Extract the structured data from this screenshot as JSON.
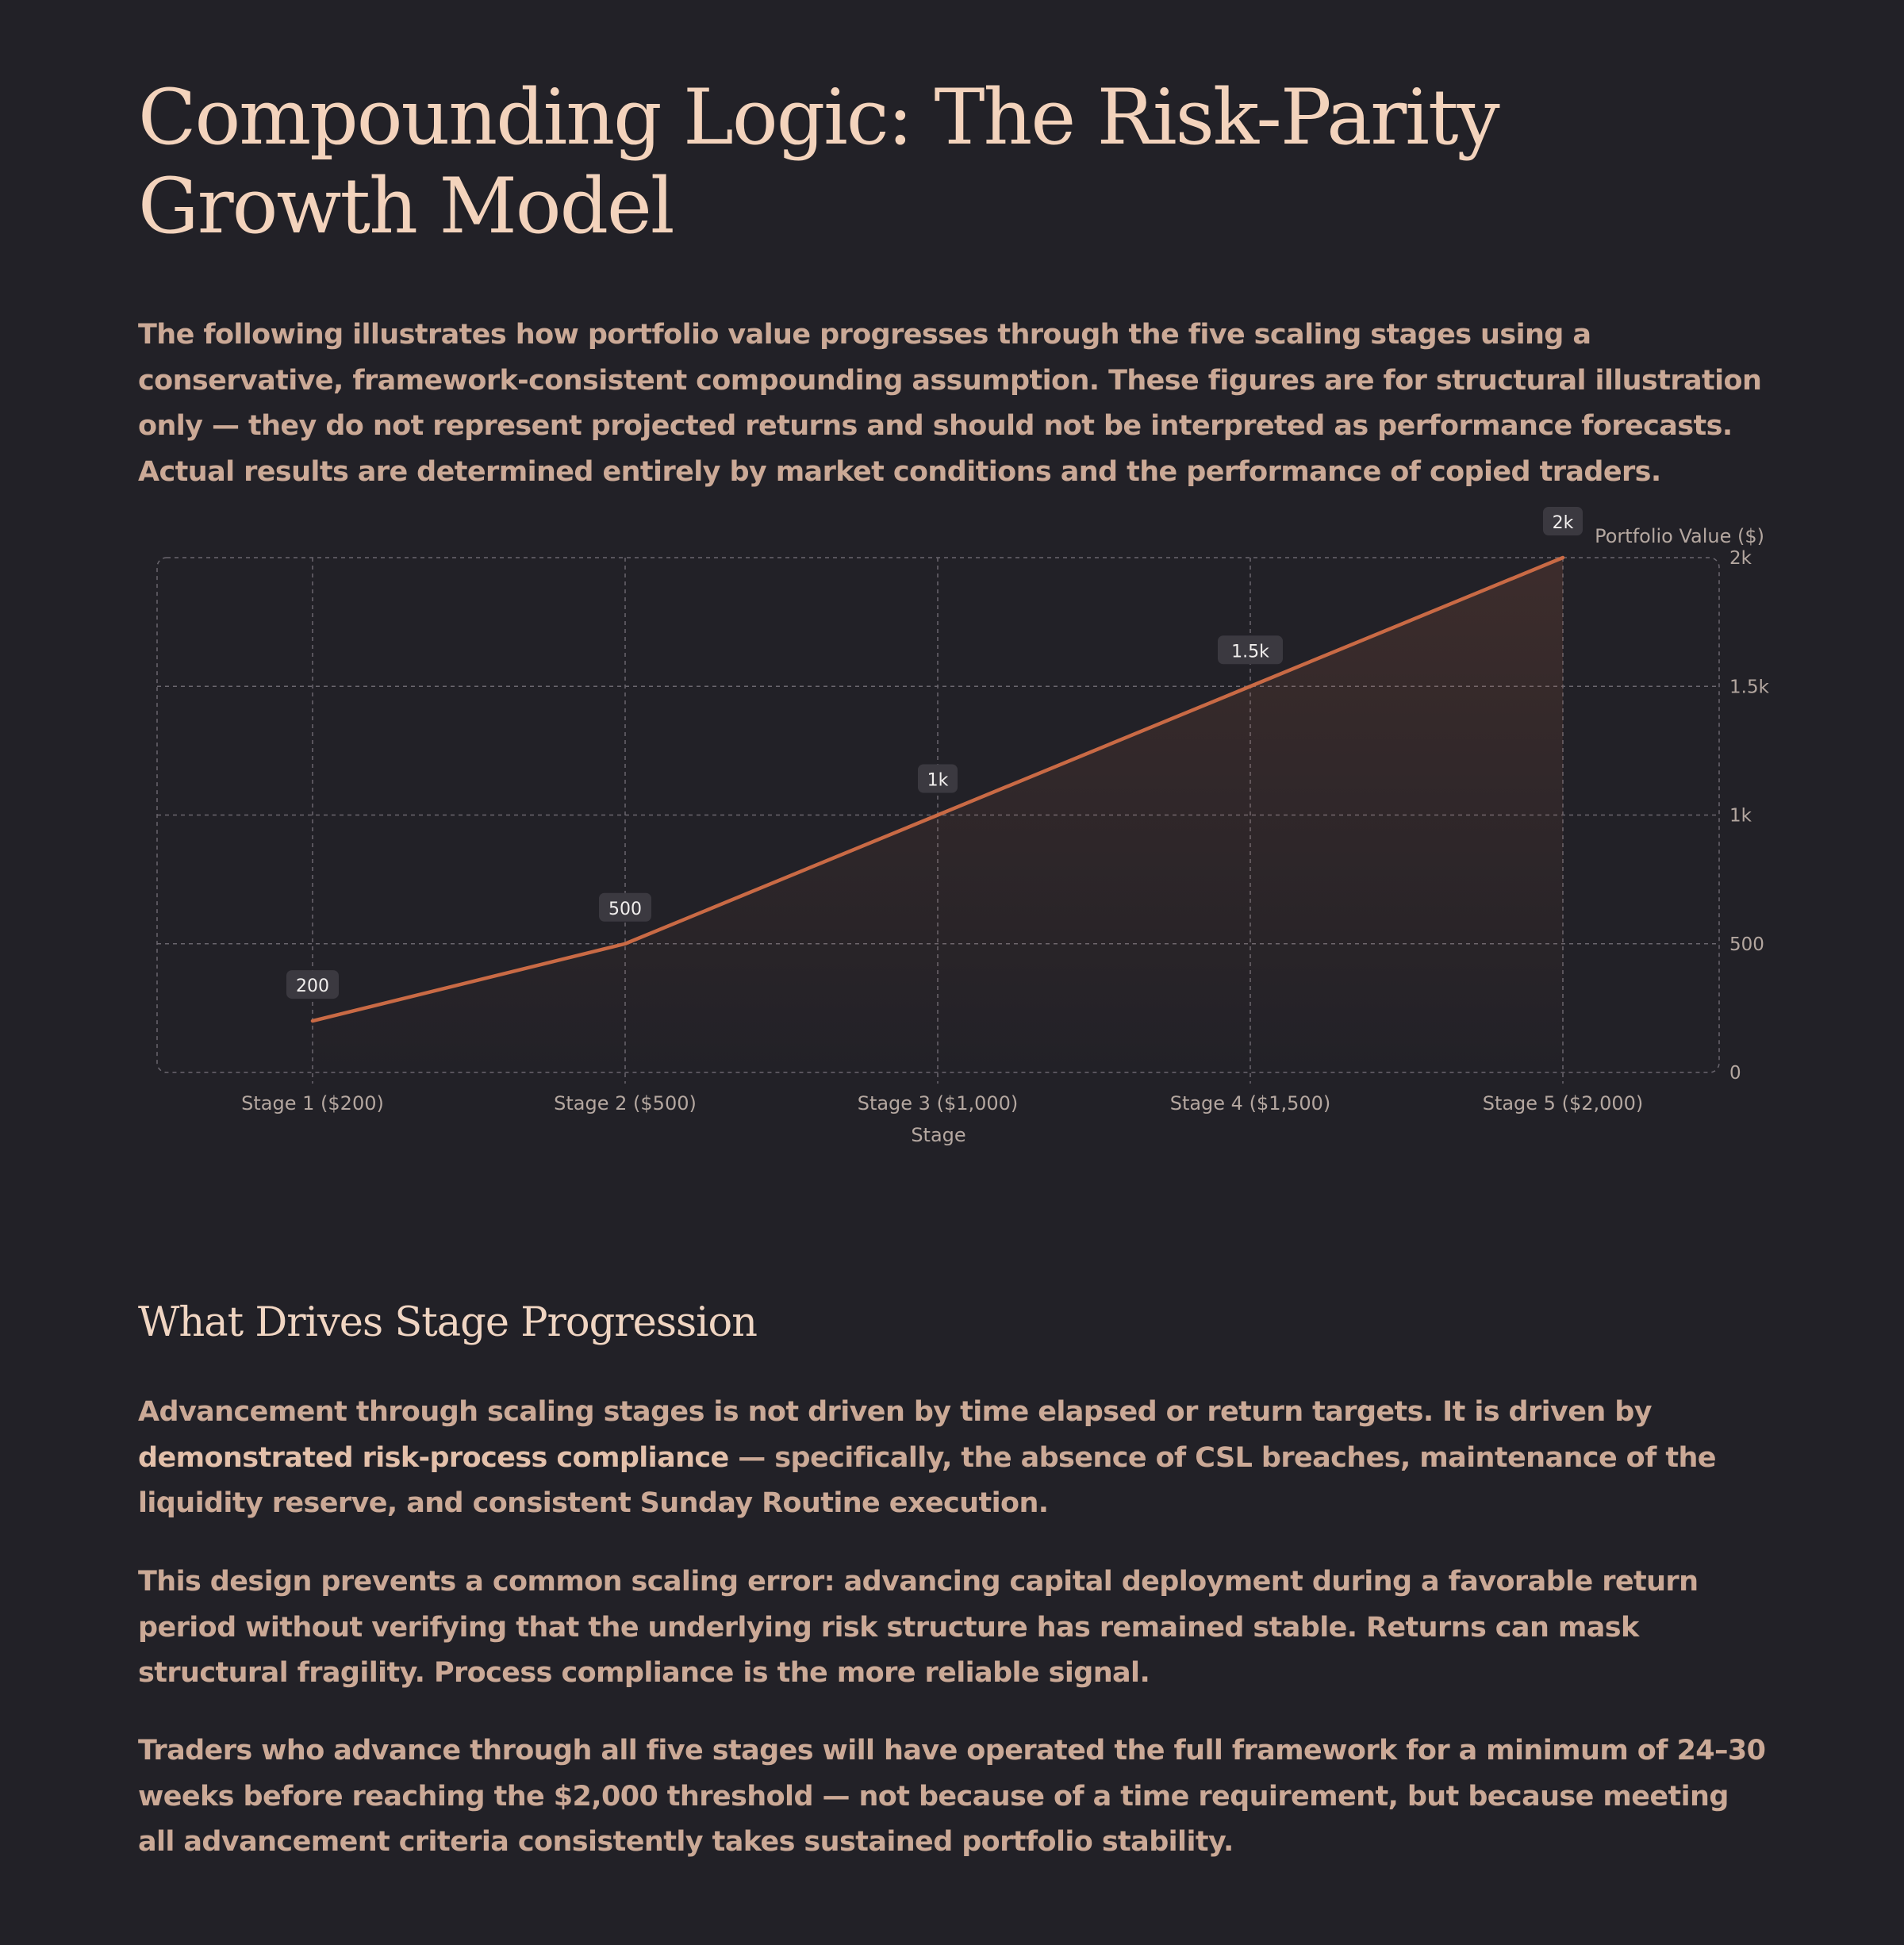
{
  "title": "Compounding Logic: The Risk-Parity Growth Model",
  "intro": "The following illustrates how portfolio value progresses through the five scaling stages using a conservative, framework-consistent compounding assumption. These figures are for structural illustration only — they do not represent projected returns and should not be interpreted as performance forecasts. Actual results are determined entirely by market conditions and the performance of copied traders.",
  "colors": {
    "background": "#222127",
    "line": "#c96a45",
    "title": "#f3d3bc",
    "body_text": "#cba996"
  },
  "chart_data": {
    "type": "area",
    "categories": [
      "Stage 1 ($200)",
      "Stage 2 ($500)",
      "Stage 3 ($1,000)",
      "Stage 4 ($1,500)",
      "Stage 5 ($2,000)"
    ],
    "values": [
      200,
      500,
      1000,
      1500,
      2000
    ],
    "data_labels": [
      "200",
      "500",
      "1k",
      "1.5k",
      "2k"
    ],
    "xlabel": "Stage",
    "ylabel": "Portfolio Value ($)",
    "ylim": [
      0,
      2000
    ],
    "y_ticks": [
      0,
      500,
      1000,
      1500,
      2000
    ],
    "y_tick_labels": [
      "0",
      "500",
      "1k",
      "1.5k",
      "2k"
    ],
    "y_axis_side": "right",
    "grid": true
  },
  "section": {
    "heading": "What Drives Stage Progression",
    "p1_a": "Advancement through scaling stages is not driven by time elapsed or return targets. It is driven by ",
    "p1_bold": "demonstrated risk-process compliance",
    "p1_b": " — specifically, the absence of CSL breaches, maintenance of the liquidity reserve, and consistent Sunday Routine execution.",
    "p2": "This design prevents a common scaling error: advancing capital deployment during a favorable return period without verifying that the underlying risk structure has remained stable. Returns can mask structural fragility. Process compliance is the more reliable signal.",
    "p3": "Traders who advance through all five stages will have operated the full framework for a minimum of 24–30 weeks before reaching the $2,000 threshold — not because of a time requirement, but because meeting all advancement criteria consistently takes sustained portfolio stability."
  }
}
